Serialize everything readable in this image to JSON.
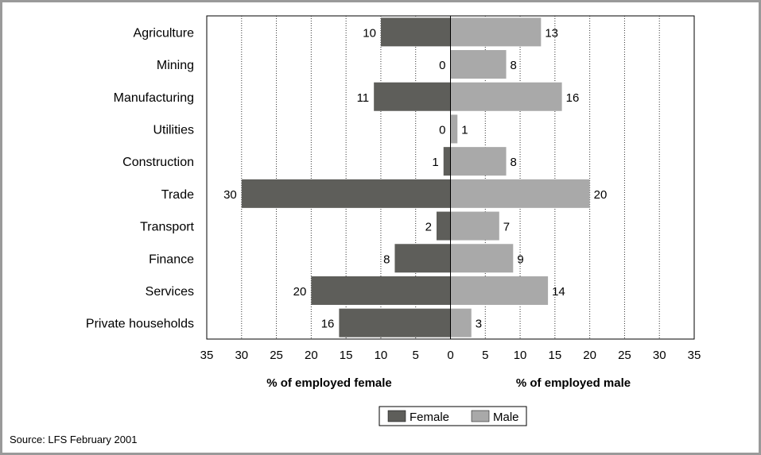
{
  "chart_data": {
    "type": "bar",
    "orientation": "horizontal-diverging",
    "categories": [
      "Agriculture",
      "Mining",
      "Manufacturing",
      "Utilities",
      "Construction",
      "Trade",
      "Transport",
      "Finance",
      "Services",
      "Private households"
    ],
    "series": [
      {
        "name": "Female",
        "values": [
          10,
          0,
          11,
          0,
          1,
          30,
          2,
          8,
          20,
          16
        ],
        "color": "#5e5e5a",
        "side": "left"
      },
      {
        "name": "Male",
        "values": [
          13,
          8,
          16,
          1,
          8,
          20,
          7,
          9,
          14,
          3
        ],
        "color": "#a9a9a9",
        "side": "right"
      }
    ],
    "xlim": [
      -35,
      35
    ],
    "x_ticks": [
      35,
      30,
      25,
      20,
      15,
      10,
      5,
      0,
      5,
      10,
      15,
      20,
      25,
      30,
      35
    ],
    "xlabel_left": "% of employed female",
    "xlabel_right": "% of employed male",
    "grid": "vertical-dotted",
    "legend": "bottom-center"
  },
  "source": "Source: LFS February 2001"
}
